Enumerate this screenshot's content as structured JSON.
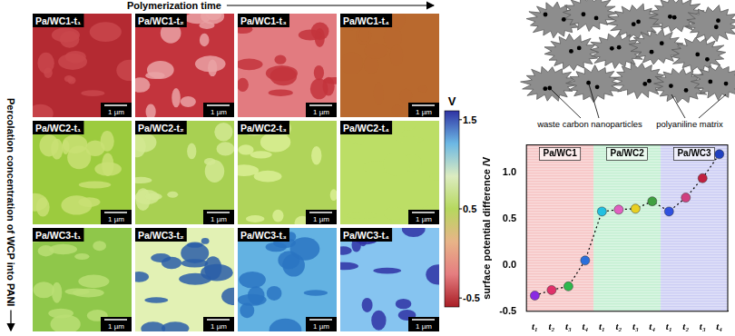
{
  "figure": {
    "column_axis": "Polymerization time",
    "row_axis": "Percolation concentration of WCP into PANI",
    "scale_bar": "1 µm",
    "panels": [
      [
        {
          "label": "Pa/WC1-t₁",
          "colors": [
            "#b42a32",
            "#c9474c"
          ]
        },
        {
          "label": "Pa/WC1-t₂",
          "colors": [
            "#c3343d",
            "#eaa2a4"
          ]
        },
        {
          "label": "Pa/WC1-t₃",
          "colors": [
            "#e27b80",
            "#c3343c"
          ]
        },
        {
          "label": "Pa/WC1-t₄",
          "colors": [
            "#b9692e",
            "#b9692e"
          ]
        }
      ],
      [
        {
          "label": "Pa/WC2-t₁",
          "colors": [
            "#9ccb3e",
            "#c9e174"
          ]
        },
        {
          "label": "Pa/WC2-t₂",
          "colors": [
            "#a8d052",
            "#d2e992"
          ]
        },
        {
          "label": "Pa/WC2-t₃",
          "colors": [
            "#b0d45a",
            "#dbee95"
          ]
        },
        {
          "label": "Pa/WC2-t₄",
          "colors": [
            "#bcde66",
            "#bcde66"
          ]
        }
      ],
      [
        {
          "label": "Pa/WC3-t₁",
          "colors": [
            "#8fc74a",
            "#bade74"
          ]
        },
        {
          "label": "Pa/WC3-t₂",
          "colors": [
            "#e2f1b4",
            "#2a5ea8"
          ]
        },
        {
          "label": "Pa/WC3-t₃",
          "colors": [
            "#63b2e2",
            "#2a74c2"
          ]
        },
        {
          "label": "Pa/WC3-t₄",
          "colors": [
            "#86c4f0",
            "#2f33a4"
          ]
        }
      ]
    ]
  },
  "colorbar": {
    "unit": "V",
    "range": [
      -0.6,
      1.6
    ],
    "ticks": [
      -0.5,
      0.5,
      1.5
    ],
    "colors": [
      "#a81d25",
      "#e57d80",
      "#e8b488",
      "#b6d85e",
      "#dcecc0",
      "#6cb8e4",
      "#2f33a4"
    ]
  },
  "schematic": {
    "labels": [
      "waste carbon nanoparticles",
      "polyaniline matrix"
    ]
  },
  "chart_data": {
    "type": "line",
    "y_label": "surface potential difference /V",
    "categories": [
      "t₁",
      "t₂",
      "t₃",
      "t₄",
      "t₁",
      "t₂",
      "t₃",
      "t₄",
      "t₁",
      "t₂",
      "t₃",
      "t₄"
    ],
    "values": [
      -0.33,
      -0.27,
      -0.23,
      0.05,
      0.58,
      0.6,
      0.61,
      0.69,
      0.58,
      0.73,
      0.94,
      1.2
    ],
    "color": "#000000",
    "line_style": "dotted",
    "marker": "circle",
    "colors": [
      "#8a2be2",
      "#e0306a",
      "#2db84d",
      "#2a6fdb",
      "#22c0e0",
      "#e060c0",
      "#e8d020",
      "#40a040",
      "#3050e0",
      "#d04080",
      "#c02040",
      "#2040c0"
    ],
    "groups": [
      {
        "name": "Pa/WC1",
        "color": "#f6c4c4"
      },
      {
        "name": "Pa/WC2",
        "color": "#c4efd2"
      },
      {
        "name": "Pa/WC3",
        "color": "#cccdf4"
      }
    ],
    "ylim": [
      -0.5,
      1.3
    ],
    "yticks": [
      -0.5,
      {
        "value": 0,
        "label": "0.0"
      },
      0.5,
      {
        "value": 1,
        "label": "1.0"
      }
    ],
    "grid": false
  }
}
